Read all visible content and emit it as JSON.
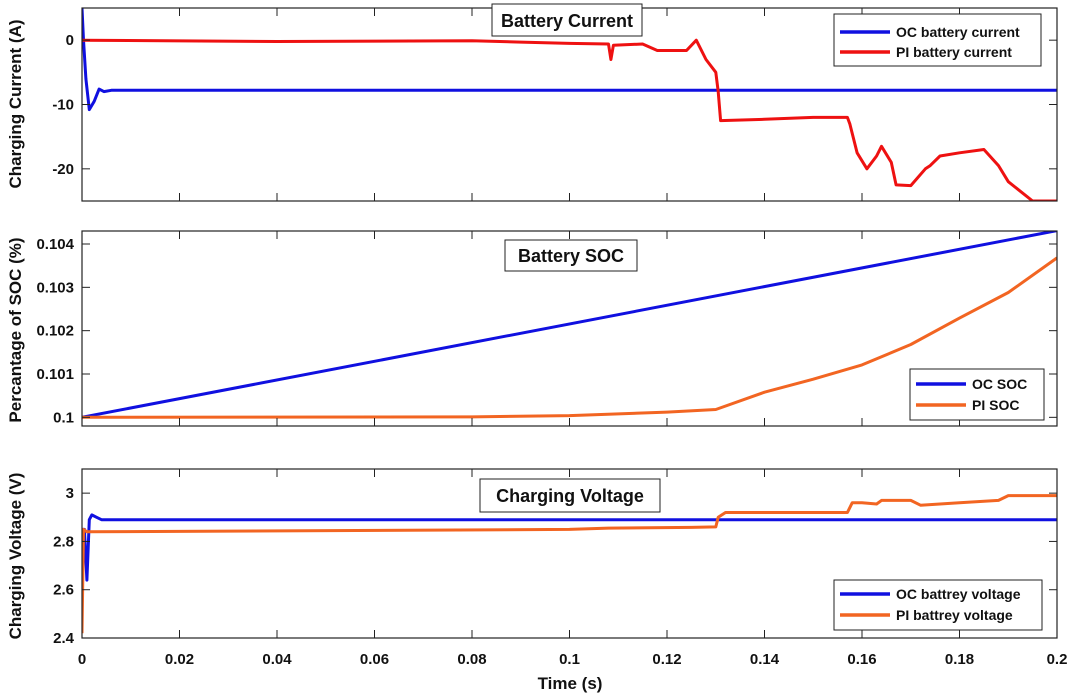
{
  "colors": {
    "oc": "#1010e0",
    "pi_current": "#ee1111",
    "pi_orange": "#f26522",
    "axis": "#222222",
    "grid": "#000000"
  },
  "xlabel": "Time (s)",
  "x_ticks": [
    "0",
    "0.02",
    "0.04",
    "0.06",
    "0.08",
    "0.1",
    "0.12",
    "0.14",
    "0.16",
    "0.18",
    "0.2"
  ],
  "chart_data": [
    {
      "type": "line",
      "title": "Battery Current",
      "ylabel": "Charging Current (A)",
      "xlim": [
        0,
        0.2
      ],
      "ylim": [
        -25,
        5
      ],
      "y_ticks": [
        "-20",
        "-10",
        "0"
      ],
      "y_tick_values": [
        -20,
        -10,
        0
      ],
      "legend_position": "top-right",
      "series": [
        {
          "name": "OC battery current",
          "color": "#1010e0",
          "points": [
            [
              0,
              5
            ],
            [
              0.0003,
              0
            ],
            [
              0.0008,
              -6
            ],
            [
              0.0015,
              -10.8
            ],
            [
              0.0025,
              -9.5
            ],
            [
              0.0035,
              -7.6
            ],
            [
              0.0045,
              -8.0
            ],
            [
              0.006,
              -7.8
            ],
            [
              0.01,
              -7.8
            ],
            [
              0.2,
              -7.8
            ]
          ]
        },
        {
          "name": "PI battery current",
          "color": "#ee1111",
          "points": [
            [
              0,
              0
            ],
            [
              0.04,
              -0.2
            ],
            [
              0.08,
              -0.1
            ],
            [
              0.09,
              -0.3
            ],
            [
              0.1,
              -0.5
            ],
            [
              0.108,
              -0.6
            ],
            [
              0.1085,
              -3
            ],
            [
              0.109,
              -0.8
            ],
            [
              0.115,
              -0.6
            ],
            [
              0.118,
              -1.6
            ],
            [
              0.124,
              -1.6
            ],
            [
              0.126,
              0
            ],
            [
              0.128,
              -3
            ],
            [
              0.13,
              -5
            ],
            [
              0.1305,
              -8
            ],
            [
              0.131,
              -12.5
            ],
            [
              0.14,
              -12.3
            ],
            [
              0.15,
              -12.0
            ],
            [
              0.157,
              -12.0
            ],
            [
              0.1575,
              -13
            ],
            [
              0.159,
              -17.5
            ],
            [
              0.161,
              -20
            ],
            [
              0.163,
              -18
            ],
            [
              0.164,
              -16.5
            ],
            [
              0.166,
              -19
            ],
            [
              0.167,
              -22.5
            ],
            [
              0.17,
              -22.6
            ],
            [
              0.173,
              -20
            ],
            [
              0.174,
              -19.5
            ],
            [
              0.176,
              -18
            ],
            [
              0.18,
              -17.5
            ],
            [
              0.185,
              -17.0
            ],
            [
              0.188,
              -19.5
            ],
            [
              0.19,
              -22
            ],
            [
              0.195,
              -25
            ],
            [
              0.2,
              -25
            ]
          ]
        }
      ]
    },
    {
      "type": "line",
      "title": "Battery SOC",
      "ylabel": "Percantage of SOC (%)",
      "xlim": [
        0,
        0.2
      ],
      "ylim": [
        0.0998,
        0.1043
      ],
      "y_ticks": [
        "0.1",
        "0.101",
        "0.102",
        "0.103",
        "0.104"
      ],
      "y_tick_values": [
        0.1,
        0.101,
        0.102,
        0.103,
        0.104
      ],
      "legend_position": "bottom-right",
      "series": [
        {
          "name": "OC SOC",
          "color": "#1010e0",
          "points": [
            [
              0,
              0.1
            ],
            [
              0.2,
              0.10431
            ]
          ]
        },
        {
          "name": "PI SOC",
          "color": "#f26522",
          "points": [
            [
              0,
              0.1
            ],
            [
              0.08,
              0.10001
            ],
            [
              0.1,
              0.10004
            ],
            [
              0.12,
              0.10012
            ],
            [
              0.13,
              0.10018
            ],
            [
              0.14,
              0.10058
            ],
            [
              0.15,
              0.10088
            ],
            [
              0.16,
              0.10121
            ],
            [
              0.17,
              0.10168
            ],
            [
              0.18,
              0.10229
            ],
            [
              0.19,
              0.10288
            ],
            [
              0.2,
              0.10368
            ]
          ]
        }
      ]
    },
    {
      "type": "line",
      "title": "Charging Voltage",
      "ylabel": "Charging Voltage (V)",
      "xlim": [
        0,
        0.2
      ],
      "ylim": [
        2.4,
        3.1
      ],
      "y_ticks": [
        "2.4",
        "2.6",
        "2.8",
        "3"
      ],
      "y_tick_values": [
        2.4,
        2.6,
        2.8,
        3.0
      ],
      "legend_position": "bottom-right",
      "series": [
        {
          "name": "OC battrey voltage",
          "color": "#1010e0",
          "points": [
            [
              0,
              2.85
            ],
            [
              0.0005,
              2.85
            ],
            [
              0.001,
              2.64
            ],
            [
              0.0015,
              2.89
            ],
            [
              0.002,
              2.91
            ],
            [
              0.003,
              2.9
            ],
            [
              0.004,
              2.89
            ],
            [
              0.2,
              2.89
            ]
          ]
        },
        {
          "name": "PI battrey voltage",
          "color": "#f26522",
          "points": [
            [
              0,
              2.42
            ],
            [
              0.0003,
              2.85
            ],
            [
              0.001,
              2.84
            ],
            [
              0.1,
              2.85
            ],
            [
              0.108,
              2.855
            ],
            [
              0.125,
              2.858
            ],
            [
              0.13,
              2.86
            ],
            [
              0.1305,
              2.9
            ],
            [
              0.132,
              2.92
            ],
            [
              0.14,
              2.92
            ],
            [
              0.157,
              2.92
            ],
            [
              0.158,
              2.96
            ],
            [
              0.16,
              2.96
            ],
            [
              0.163,
              2.955
            ],
            [
              0.164,
              2.97
            ],
            [
              0.17,
              2.97
            ],
            [
              0.172,
              2.95
            ],
            [
              0.18,
              2.96
            ],
            [
              0.188,
              2.97
            ],
            [
              0.19,
              2.99
            ],
            [
              0.2,
              2.99
            ]
          ]
        }
      ]
    }
  ]
}
